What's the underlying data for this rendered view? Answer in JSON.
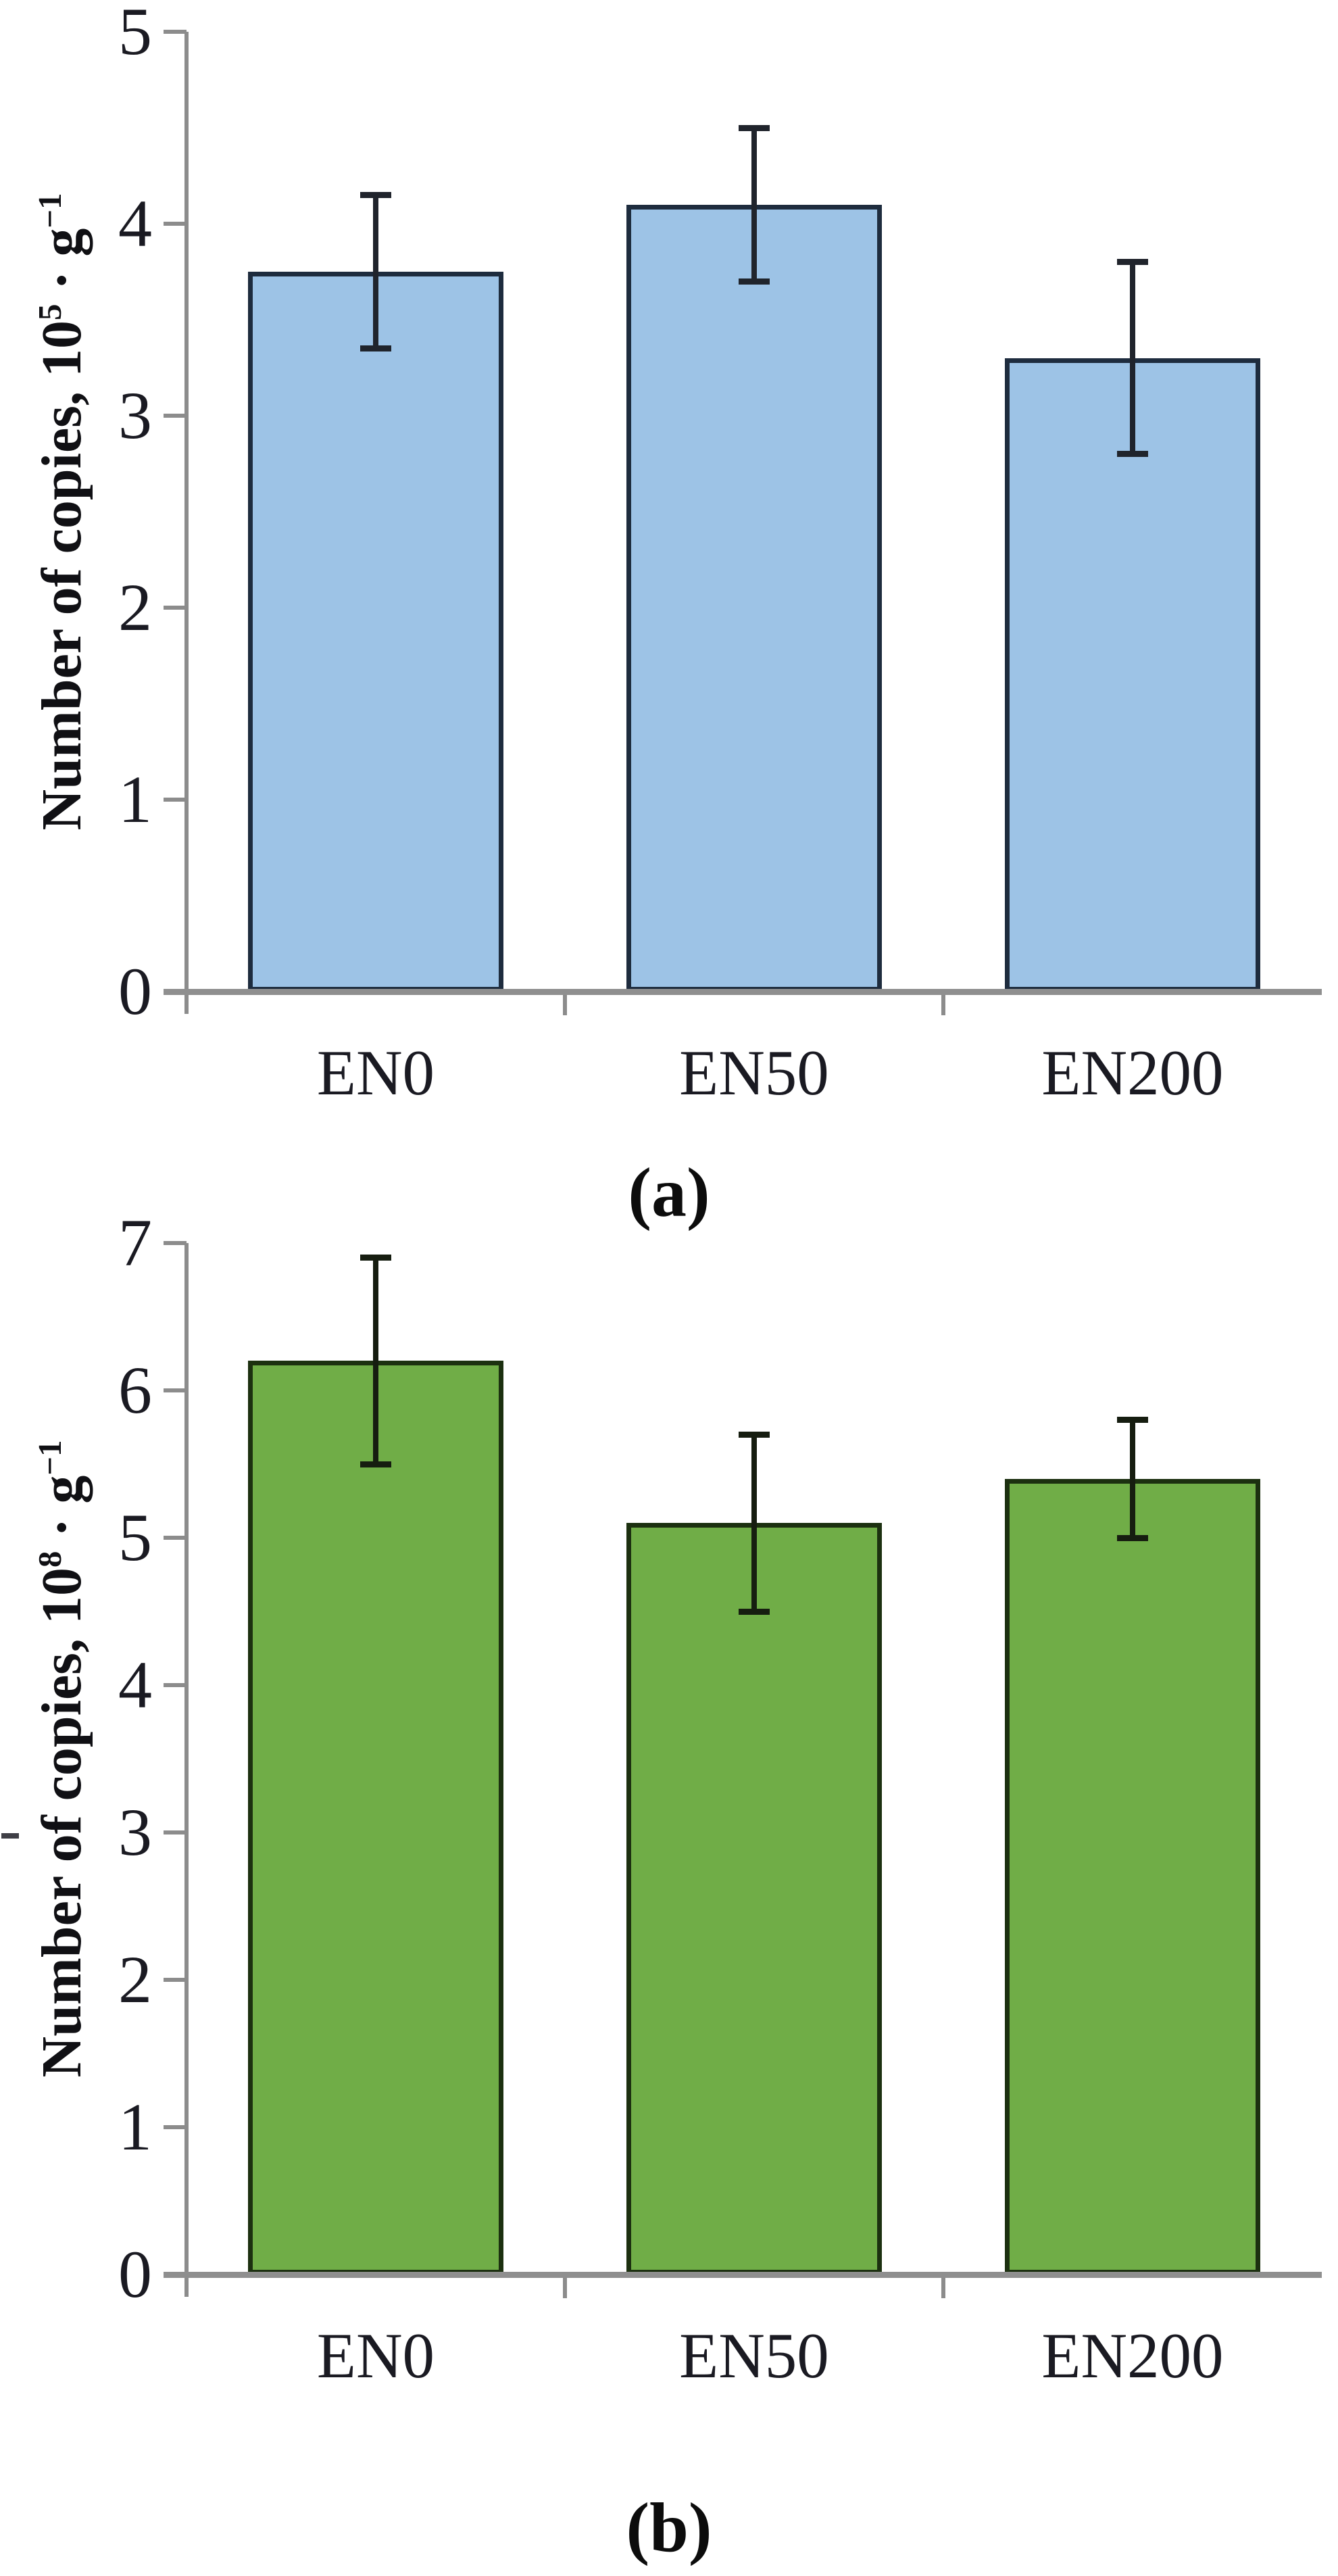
{
  "chart_data": [
    {
      "type": "bar",
      "panel": "a",
      "caption": "(a)",
      "categories": [
        "EN0",
        "EN50",
        "EN200"
      ],
      "values": [
        3.75,
        4.1,
        3.3
      ],
      "error_low": [
        3.35,
        3.7,
        2.8
      ],
      "error_high": [
        4.15,
        4.5,
        3.8
      ],
      "ylabel_parts": {
        "prefix": "Number of copies, 10",
        "exp": "5",
        "mid": " · g",
        "exp2": "−1"
      },
      "ylim": [
        0,
        5
      ],
      "ytick_step": 1,
      "grid": false,
      "legend": null,
      "bar_fill": "#9DC3E6",
      "bar_border": "#1E2C3E",
      "error_color": "#20242C"
    },
    {
      "type": "bar",
      "panel": "b",
      "caption": "(b)",
      "categories": [
        "EN0",
        "EN50",
        "EN200"
      ],
      "values": [
        6.2,
        5.1,
        5.4
      ],
      "error_low": [
        5.5,
        4.5,
        5.0
      ],
      "error_high": [
        6.9,
        5.7,
        5.8
      ],
      "ylabel_parts": {
        "prefix": "Number of copies, 10",
        "exp": "8",
        "mid": " · g",
        "exp2": "−1"
      },
      "ylim": [
        0,
        7
      ],
      "ytick_step": 1,
      "grid": false,
      "legend": null,
      "bar_fill": "#70AD47",
      "bar_border": "#1C3010",
      "error_color": "#161D10"
    }
  ]
}
